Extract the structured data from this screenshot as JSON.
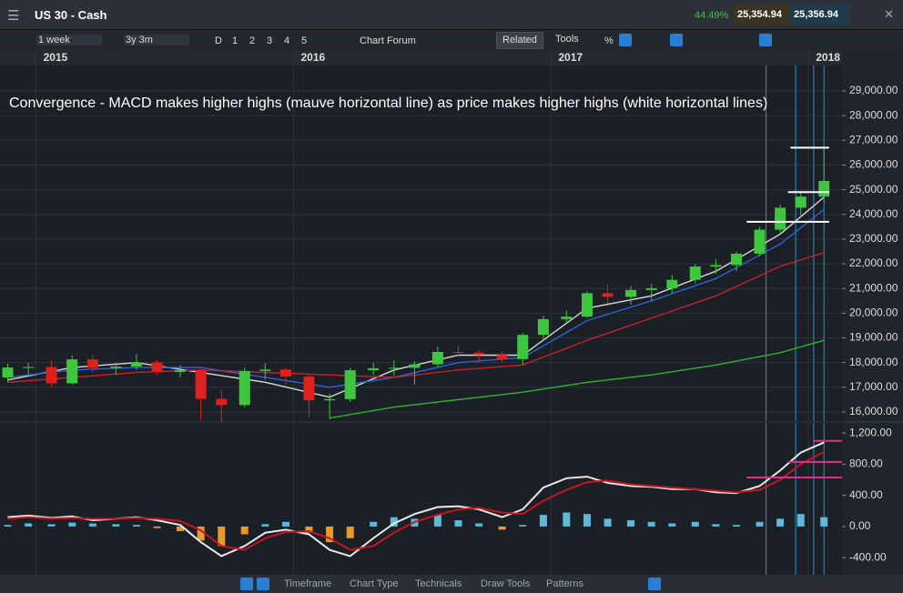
{
  "toolbar": {
    "instrument": "US 30 - Cash",
    "change": "44.49%",
    "sell": "25,354.94",
    "buy": "25,356.94",
    "interval": "1 week",
    "range": "3y 3m",
    "periods": [
      "D",
      "1",
      "2",
      "3",
      "4",
      "5"
    ],
    "forum": "Chart Forum",
    "related": "Related",
    "tools": "Tools",
    "percent": "%",
    "bottom": [
      "Timeframe",
      "Chart Type",
      "Technicals",
      "Draw Tools",
      "Patterns"
    ]
  },
  "chart_data": [
    {
      "type": "candlestick",
      "annotation": "Convergence - MACD makes higher highs (mauve horizontal line) as price makes higher highs (white horizontal lines)",
      "xlim": [
        2014.86,
        2018.13
      ],
      "xticks": [
        2015,
        2016,
        2017,
        2018
      ],
      "ylim": [
        15630,
        30030
      ],
      "yticks": [
        {
          "value": 16000,
          "label": "16,000.00"
        },
        {
          "value": 17000,
          "label": "17,000.00"
        },
        {
          "value": 18000,
          "label": "18,000.00"
        },
        {
          "value": 19000,
          "label": "19,000.00"
        },
        {
          "value": 20000,
          "label": "20,000.00"
        },
        {
          "value": 21000,
          "label": "21,000.00"
        },
        {
          "value": 22000,
          "label": "22,000.00"
        },
        {
          "value": 23000,
          "label": "23,000.00"
        },
        {
          "value": 24000,
          "label": "24,000.00"
        },
        {
          "value": 25000,
          "label": "25,000.00"
        },
        {
          "value": 26000,
          "label": "26,000.00"
        },
        {
          "value": 27000,
          "label": "27,000.00"
        },
        {
          "value": 28000,
          "label": "28,000.00"
        },
        {
          "value": 29000,
          "label": "29,000.00"
        }
      ],
      "grid": true,
      "up_color": "#3ec63e",
      "down_color": "#e0201c",
      "x": [
        2014.89,
        2014.97,
        2015.06,
        2015.14,
        2015.22,
        2015.31,
        2015.39,
        2015.47,
        2015.56,
        2015.64,
        2015.72,
        2015.81,
        2015.89,
        2015.97,
        2016.06,
        2016.14,
        2016.22,
        2016.31,
        2016.39,
        2016.47,
        2016.56,
        2016.64,
        2016.72,
        2016.81,
        2016.89,
        2016.97,
        2017.06,
        2017.14,
        2017.22,
        2017.31,
        2017.39,
        2017.47,
        2017.56,
        2017.64,
        2017.72,
        2017.81,
        2017.89,
        2017.97,
        2018.06
      ],
      "open": [
        17400,
        17800,
        17820,
        17160,
        18130,
        17780,
        17840,
        18010,
        17620,
        17690,
        16530,
        16280,
        17660,
        17720,
        17430,
        16470,
        16520,
        17690,
        17770,
        17790,
        17930,
        18430,
        18400,
        18310,
        18140,
        19120,
        19760,
        19860,
        20810,
        20660,
        20940,
        21010,
        21350,
        21890,
        21950,
        22410,
        23380,
        24270,
        24720
      ],
      "high": [
        17950,
        17990,
        18100,
        18290,
        18300,
        18000,
        18350,
        18100,
        17900,
        17800,
        16900,
        17800,
        17980,
        17800,
        17500,
        16750,
        17800,
        18000,
        18100,
        18050,
        18650,
        18670,
        18500,
        18450,
        19200,
        19900,
        20100,
        20900,
        21150,
        21100,
        21200,
        21550,
        22000,
        22200,
        22500,
        23500,
        24400,
        24900,
        26700
      ],
      "low": [
        17200,
        17500,
        17000,
        17100,
        17600,
        17500,
        17700,
        17500,
        17400,
        15700,
        15600,
        16200,
        17300,
        17100,
        15800,
        15700,
        16400,
        17500,
        17450,
        17100,
        17800,
        18200,
        18000,
        18000,
        17900,
        18900,
        19600,
        19800,
        20400,
        20350,
        20500,
        20800,
        21200,
        21600,
        21700,
        22300,
        23200,
        23900,
        24500
      ],
      "close": [
        17800,
        17820,
        17160,
        18130,
        17780,
        17840,
        18010,
        17620,
        17690,
        16530,
        16280,
        17660,
        17720,
        17430,
        16470,
        16520,
        17690,
        17770,
        17790,
        17930,
        18430,
        18400,
        18310,
        18140,
        19120,
        19760,
        19860,
        20810,
        20660,
        20940,
        21010,
        21350,
        21890,
        21950,
        22410,
        23380,
        24270,
        24720,
        25355
      ],
      "lines_x": [
        2014.89,
        2015.14,
        2015.39,
        2015.64,
        2015.89,
        2016.14,
        2016.39,
        2016.64,
        2016.89,
        2017.14,
        2017.39,
        2017.64,
        2017.89,
        2018.06
      ],
      "lines": [
        {
          "color": "#d8d8d8",
          "values": [
            17300,
            17800,
            18000,
            17600,
            17200,
            16600,
            17700,
            18300,
            18300,
            20200,
            20700,
            21700,
            23200,
            24700
          ]
        },
        {
          "color": "#2b63d8",
          "values": [
            17400,
            17700,
            17800,
            17800,
            17400,
            17000,
            17400,
            18000,
            18200,
            19700,
            20500,
            21400,
            22800,
            24200
          ]
        },
        {
          "color": "#c8202a",
          "values": [
            17200,
            17400,
            17600,
            17700,
            17600,
            17500,
            17400,
            17700,
            17900,
            18900,
            19800,
            20700,
            21900,
            22450
          ]
        },
        {
          "color": "#30b030",
          "values": [
            null,
            null,
            null,
            null,
            null,
            15750,
            16200,
            16500,
            16800,
            17200,
            17500,
            17900,
            18400,
            18900
          ]
        }
      ],
      "levels_color": "#ffffff",
      "levels": [
        {
          "value": 26700,
          "x": [
            2017.93,
            2018.08
          ]
        },
        {
          "value": 24900,
          "x": [
            2017.92,
            2018.08
          ]
        },
        {
          "value": 23700,
          "x": [
            2017.76,
            2018.08
          ]
        }
      ],
      "vlines_color": "#2e8fd0",
      "vlines": [
        2017.835,
        2017.95,
        2018.02,
        2018.06
      ]
    },
    {
      "type": "macd",
      "xlim": [
        2014.86,
        2018.13
      ],
      "ylim": [
        -620,
        1330
      ],
      "yticks": [
        {
          "value": -400,
          "label": "-400.00"
        },
        {
          "value": 0,
          "label": "0.00"
        },
        {
          "value": 400,
          "label": "400.00"
        },
        {
          "value": 800,
          "label": "800.00"
        },
        {
          "value": 1200,
          "label": "1,200.00"
        }
      ],
      "x": [
        2014.89,
        2014.97,
        2015.06,
        2015.14,
        2015.22,
        2015.31,
        2015.39,
        2015.47,
        2015.56,
        2015.64,
        2015.72,
        2015.81,
        2015.89,
        2015.97,
        2016.06,
        2016.14,
        2016.22,
        2016.31,
        2016.39,
        2016.47,
        2016.56,
        2016.64,
        2016.72,
        2016.81,
        2016.89,
        2016.97,
        2017.06,
        2017.14,
        2017.22,
        2017.31,
        2017.39,
        2017.47,
        2017.56,
        2017.64,
        2017.72,
        2017.81,
        2017.89,
        2017.97,
        2018.06
      ],
      "histogram": {
        "color": "#5fb8d8",
        "negative_color": "#e89a2a",
        "values": [
          20,
          40,
          30,
          50,
          40,
          30,
          20,
          -20,
          -60,
          -180,
          -250,
          -100,
          30,
          60,
          -80,
          -200,
          -150,
          60,
          120,
          100,
          150,
          80,
          40,
          -40,
          20,
          150,
          180,
          160,
          100,
          80,
          60,
          40,
          60,
          30,
          20,
          60,
          100,
          160,
          120
        ]
      },
      "series": [
        {
          "color": "#e8e8e8",
          "values": [
            120,
            140,
            110,
            130,
            80,
            100,
            120,
            80,
            20,
            -200,
            -380,
            -250,
            -80,
            -40,
            -100,
            -300,
            -380,
            -150,
            40,
            160,
            250,
            260,
            220,
            120,
            220,
            500,
            620,
            640,
            560,
            520,
            510,
            480,
            480,
            440,
            430,
            520,
            720,
            950,
            1080
          ]
        },
        {
          "color": "#c8141e",
          "values": [
            100,
            120,
            100,
            110,
            100,
            100,
            110,
            100,
            70,
            -50,
            -250,
            -300,
            -150,
            -70,
            -60,
            -150,
            -300,
            -250,
            -80,
            60,
            150,
            220,
            240,
            180,
            160,
            330,
            470,
            570,
            590,
            540,
            520,
            500,
            480,
            460,
            440,
            470,
            600,
            800,
            960
          ]
        }
      ],
      "levels_color": "#e0308a",
      "levels": [
        {
          "value": 1100,
          "x": [
            2018.02,
            2018.13
          ]
        },
        {
          "value": 830,
          "x": [
            2017.92,
            2018.13
          ]
        },
        {
          "value": 630,
          "x": [
            2017.76,
            2018.13
          ]
        }
      ],
      "vlines_color": "#2e8fd0",
      "vlines": [
        2017.835,
        2017.95,
        2018.02,
        2018.06
      ]
    }
  ]
}
